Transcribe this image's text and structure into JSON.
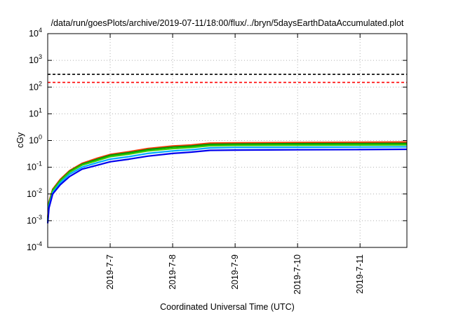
{
  "chart_data": {
    "type": "line",
    "title": "/data/run/goesPlots/archive/2019-07-11/18:00/flux/../bryn/5daysEarthDataAccumulated.plot",
    "xlabel": "Coordinated Universal Time (UTC)",
    "ylabel": "cGy",
    "yscale": "log",
    "ylim": [
      0.0001,
      10000
    ],
    "xlim": [
      "2019-07-06 00:00",
      "2019-07-11 18:00"
    ],
    "x_ticks": [
      "2019-7-7",
      "2019-7-8",
      "2019-7-9",
      "2019-7-10",
      "2019-7-11"
    ],
    "y_ticks": [
      {
        "base": "10",
        "exp": "-4"
      },
      {
        "base": "10",
        "exp": "-3"
      },
      {
        "base": "10",
        "exp": "-2"
      },
      {
        "base": "10",
        "exp": "-1"
      },
      {
        "base": "10",
        "exp": "0"
      },
      {
        "base": "10",
        "exp": "1"
      },
      {
        "base": "10",
        "exp": "2"
      },
      {
        "base": "10",
        "exp": "3"
      },
      {
        "base": "10",
        "exp": "4"
      }
    ],
    "grid": true,
    "reference_lines": [
      {
        "y": 300,
        "color": "#000000",
        "style": "dashed"
      },
      {
        "y": 150,
        "color": "#ff0000",
        "style": "dashed"
      }
    ],
    "series": [
      {
        "color": "#ff3300",
        "x_days": [
          0.0,
          0.02,
          0.08,
          0.2,
          0.35,
          0.55,
          0.8,
          1.0,
          1.3,
          1.6,
          2.0,
          2.3,
          2.6,
          3.0,
          4.0,
          5.0,
          5.75
        ],
        "y": [
          0.0012,
          0.005,
          0.015,
          0.035,
          0.075,
          0.14,
          0.22,
          0.3,
          0.38,
          0.5,
          0.62,
          0.68,
          0.8,
          0.82,
          0.84,
          0.86,
          0.88
        ]
      },
      {
        "color": "#009900",
        "x_days": [
          0.0,
          0.02,
          0.08,
          0.2,
          0.35,
          0.55,
          0.8,
          1.0,
          1.3,
          1.6,
          2.0,
          2.3,
          2.6,
          3.0,
          4.0,
          5.0,
          5.75
        ],
        "y": [
          0.0011,
          0.0045,
          0.014,
          0.032,
          0.07,
          0.13,
          0.2,
          0.28,
          0.35,
          0.46,
          0.57,
          0.62,
          0.72,
          0.74,
          0.76,
          0.77,
          0.78
        ]
      },
      {
        "color": "#33cc00",
        "x_days": [
          0.0,
          0.02,
          0.08,
          0.2,
          0.35,
          0.55,
          0.8,
          1.0,
          1.3,
          1.6,
          2.0,
          2.3,
          2.6,
          3.0,
          4.0,
          5.0,
          5.75
        ],
        "y": [
          0.001,
          0.004,
          0.013,
          0.03,
          0.065,
          0.12,
          0.18,
          0.25,
          0.31,
          0.41,
          0.5,
          0.55,
          0.64,
          0.66,
          0.67,
          0.68,
          0.69
        ]
      },
      {
        "color": "#00aaff",
        "x_days": [
          0.0,
          0.02,
          0.08,
          0.2,
          0.35,
          0.55,
          0.8,
          1.0,
          1.3,
          1.6,
          2.0,
          2.3,
          2.6,
          3.0,
          4.0,
          5.0,
          5.75
        ],
        "y": [
          0.0009,
          0.0035,
          0.011,
          0.026,
          0.055,
          0.1,
          0.15,
          0.2,
          0.25,
          0.33,
          0.41,
          0.45,
          0.53,
          0.55,
          0.56,
          0.57,
          0.58
        ]
      },
      {
        "color": "#0000ee",
        "x_days": [
          0.0,
          0.02,
          0.08,
          0.2,
          0.35,
          0.55,
          0.8,
          1.0,
          1.3,
          1.6,
          2.0,
          2.3,
          2.6,
          3.0,
          4.0,
          5.0,
          5.75
        ],
        "y": [
          0.0008,
          0.003,
          0.01,
          0.022,
          0.045,
          0.085,
          0.12,
          0.16,
          0.2,
          0.26,
          0.33,
          0.37,
          0.43,
          0.44,
          0.45,
          0.46,
          0.47
        ]
      }
    ]
  }
}
